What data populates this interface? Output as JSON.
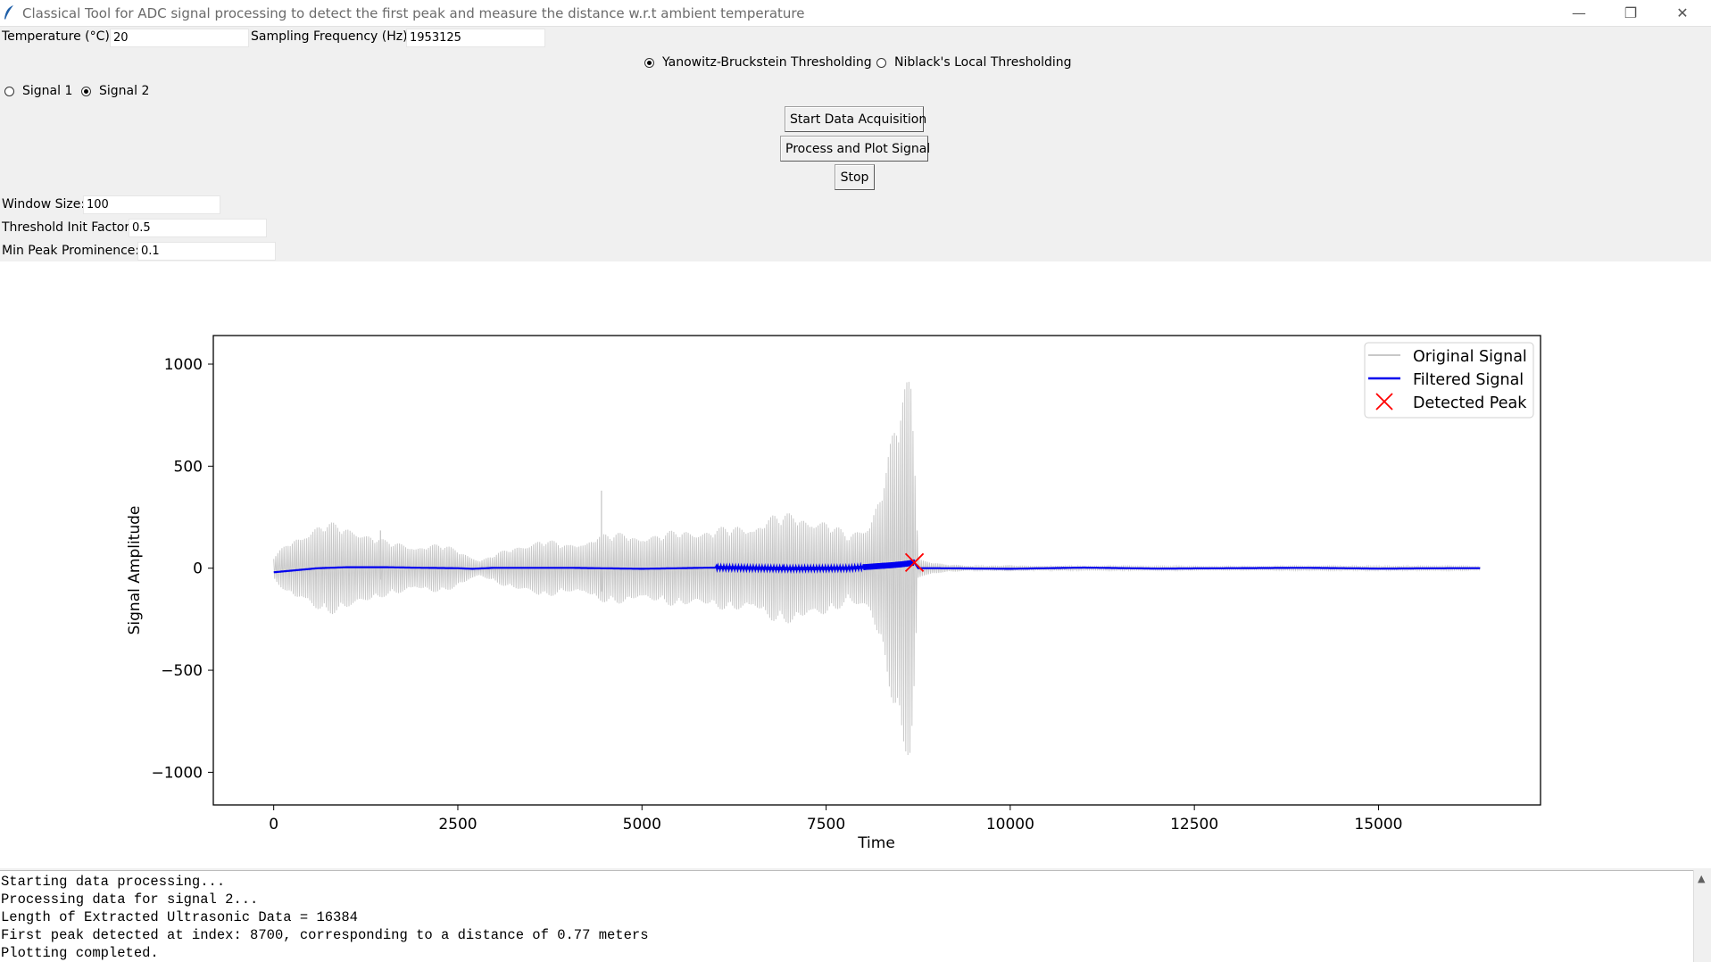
{
  "window": {
    "title": "Classical Tool for ADC signal processing to detect the first peak and measure the distance w.r.t ambient temperature",
    "controls": {
      "minimize": "—",
      "restore": "❐",
      "close": "✕"
    }
  },
  "form": {
    "temperature_label": "Temperature (°C):",
    "temperature_value": "20",
    "sampling_label": "Sampling Frequency (Hz):",
    "sampling_value": "1953125",
    "window_size_label": "Window Size:",
    "window_size_value": "100",
    "threshold_label": "Threshold Init Factor:",
    "threshold_value": "0.5",
    "prominence_label": "Min Peak Prominence:",
    "prominence_value": "0.1"
  },
  "threshold_method": {
    "options": [
      "Yanowitz-Bruckstein Thresholding",
      "Niblack's Local Thresholding"
    ],
    "selected": "Yanowitz-Bruckstein Thresholding"
  },
  "signal_select": {
    "options": [
      "Signal 1",
      "Signal 2"
    ],
    "selected": "Signal 2"
  },
  "buttons": {
    "start": "Start Data Acquisition",
    "process": "Process and Plot Signal",
    "stop": "Stop"
  },
  "colors": {
    "original": "#c8c8c8",
    "filtered": "#0000ee",
    "peak": "#ff0000"
  },
  "chart_data": {
    "type": "line",
    "xlabel": "Time",
    "ylabel": "Signal Amplitude",
    "xlim": [
      -820,
      17200
    ],
    "ylim": [
      -1160,
      1140
    ],
    "x_ticks": [
      0,
      2500,
      5000,
      7500,
      10000,
      12500,
      15000
    ],
    "x_tick_labels": [
      "0",
      "2500",
      "5000",
      "7500",
      "10000",
      "12500",
      "15000"
    ],
    "y_ticks": [
      1000,
      500,
      0,
      -500,
      -1000
    ],
    "y_tick_labels": [
      "1000",
      "500",
      "0",
      "−500",
      "−1000"
    ],
    "legend_position": "top-right",
    "series": [
      {
        "name": "Original Signal",
        "envelope_x": [
          0,
          300,
          700,
          1100,
          1500,
          1900,
          2300,
          2600,
          2800,
          3200,
          3600,
          4000,
          4400,
          4800,
          5200,
          5600,
          6000,
          6400,
          6800,
          7200,
          7500,
          7800,
          8100,
          8300,
          8500,
          8650,
          8700,
          8750,
          8900,
          9100,
          9500,
          10000,
          11000,
          12000,
          13000,
          14000,
          15000,
          16000,
          16384
        ],
        "envelope_amp": [
          60,
          170,
          230,
          210,
          140,
          120,
          120,
          80,
          40,
          100,
          150,
          120,
          170,
          180,
          170,
          200,
          200,
          220,
          270,
          280,
          240,
          170,
          250,
          480,
          850,
          1030,
          700,
          60,
          35,
          20,
          12,
          15,
          10,
          10,
          8,
          10,
          12,
          10,
          8
        ],
        "spikes": [
          [
            1450,
            185
          ],
          [
            4450,
            380
          ]
        ]
      },
      {
        "name": "Filtered Signal",
        "x": [
          0,
          300,
          600,
          1000,
          1500,
          2000,
          2500,
          2700,
          3000,
          4000,
          5000,
          6000,
          7000,
          7800,
          8000,
          8200,
          8400,
          8550,
          8650,
          8700,
          8750,
          9000,
          10000,
          11000,
          12000,
          13000,
          14000,
          15000,
          16000,
          16384
        ],
        "y": [
          -20,
          -10,
          0,
          5,
          5,
          2,
          0,
          -3,
          2,
          2,
          -3,
          3,
          -2,
          0,
          5,
          10,
          15,
          20,
          25,
          28,
          0,
          0,
          -3,
          3,
          -2,
          0,
          2,
          -2,
          0,
          0
        ]
      },
      {
        "name": "Detected Peak",
        "x": [
          8700
        ],
        "y": [
          28
        ]
      }
    ]
  },
  "console": {
    "lines": [
      "Starting data processing...",
      "Processing data for signal 2...",
      "Length of Extracted Ultrasonic Data = 16384",
      "First peak detected at index: 8700, corresponding to a distance of 0.77 meters",
      "Plotting completed."
    ]
  }
}
